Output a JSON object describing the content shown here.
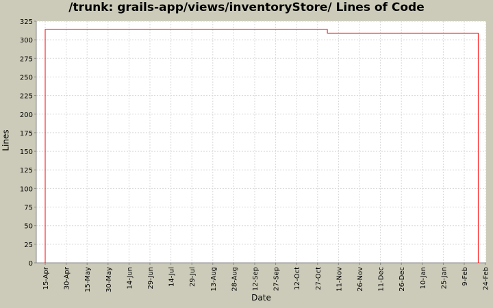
{
  "chart_data": {
    "type": "line",
    "title": "/trunk: grails-app/views/inventoryStore/ Lines of Code",
    "xlabel": "Date",
    "ylabel": "Lines",
    "ylim": [
      0,
      325
    ],
    "yticks": [
      0,
      25,
      50,
      75,
      100,
      125,
      150,
      175,
      200,
      225,
      250,
      275,
      300,
      325
    ],
    "xticks": [
      "15-Apr",
      "30-Apr",
      "15-May",
      "30-May",
      "14-Jun",
      "29-Jun",
      "14-Jul",
      "29-Jul",
      "13-Aug",
      "28-Aug",
      "12-Sep",
      "27-Sep",
      "12-Oct",
      "27-Oct",
      "11-Nov",
      "26-Nov",
      "11-Dec",
      "26-Dec",
      "10-Jan",
      "25-Jan",
      "9-Feb",
      "24-Feb"
    ],
    "grid": true,
    "step": true,
    "series": [
      {
        "color": "#ff0000",
        "points": [
          {
            "date": "15-Apr",
            "lines": 0
          },
          {
            "date": "15-Apr",
            "lines": 314
          },
          {
            "date": "3-Nov",
            "lines": 309
          },
          {
            "date": "19-Feb",
            "lines": 309
          },
          {
            "date": "19-Feb",
            "lines": 0
          }
        ]
      }
    ]
  }
}
